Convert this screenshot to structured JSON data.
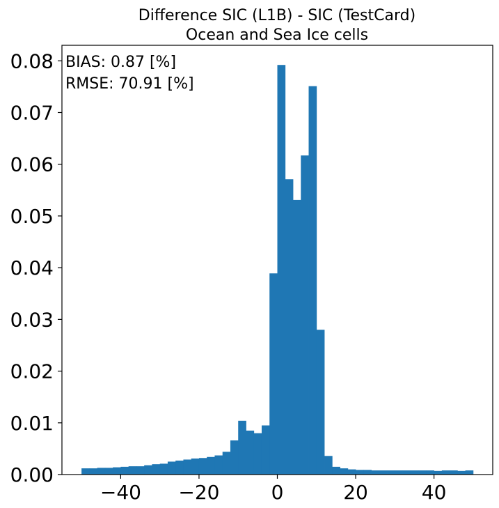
{
  "chart_data": {
    "type": "bar",
    "title": "Difference SIC (L1B) - SIC (TestCard)",
    "subtitle": "Ocean and Sea Ice cells",
    "xlabel": "",
    "ylabel": "",
    "xlim": [
      -55,
      55
    ],
    "ylim": [
      0,
      0.083
    ],
    "xticks": [
      -40,
      -20,
      0,
      20,
      40
    ],
    "xtick_labels": [
      "−40",
      "−20",
      "0",
      "20",
      "40"
    ],
    "yticks": [
      0.0,
      0.01,
      0.02,
      0.03,
      0.04,
      0.05,
      0.06,
      0.07,
      0.08
    ],
    "ytick_labels": [
      "0.00",
      "0.01",
      "0.02",
      "0.03",
      "0.04",
      "0.05",
      "0.06",
      "0.07",
      "0.08"
    ],
    "grid": false,
    "color": "#1f77b4",
    "bin_edges": [
      -50,
      -48,
      -46,
      -44,
      -42,
      -40,
      -38,
      -36,
      -34,
      -32,
      -30,
      -28,
      -26,
      -24,
      -22,
      -20,
      -18,
      -16,
      -14,
      -12,
      -10,
      -8,
      -6,
      -4,
      -2,
      0,
      2,
      4,
      6,
      8,
      10,
      12,
      14,
      16,
      18,
      20,
      22,
      24,
      26,
      28,
      30,
      32,
      34,
      36,
      38,
      40,
      42,
      44,
      46,
      48,
      50
    ],
    "values": [
      0.0012,
      0.0012,
      0.0013,
      0.0013,
      0.0014,
      0.0015,
      0.0016,
      0.0016,
      0.0018,
      0.002,
      0.0021,
      0.0025,
      0.0027,
      0.0029,
      0.0031,
      0.0032,
      0.0034,
      0.0037,
      0.0044,
      0.0066,
      0.0104,
      0.0085,
      0.008,
      0.0095,
      0.0389,
      0.0792,
      0.0571,
      0.0531,
      0.0617,
      0.0751,
      0.028,
      0.0036,
      0.0015,
      0.0012,
      0.001,
      0.0009,
      0.0009,
      0.0008,
      0.0008,
      0.0008,
      0.0008,
      0.0008,
      0.0008,
      0.0008,
      0.0008,
      0.0007,
      0.0008,
      0.0008,
      0.0007,
      0.0008
    ],
    "annotations": [
      "BIAS: 0.87 [%]",
      "RMSE: 70.91 [%]"
    ]
  }
}
